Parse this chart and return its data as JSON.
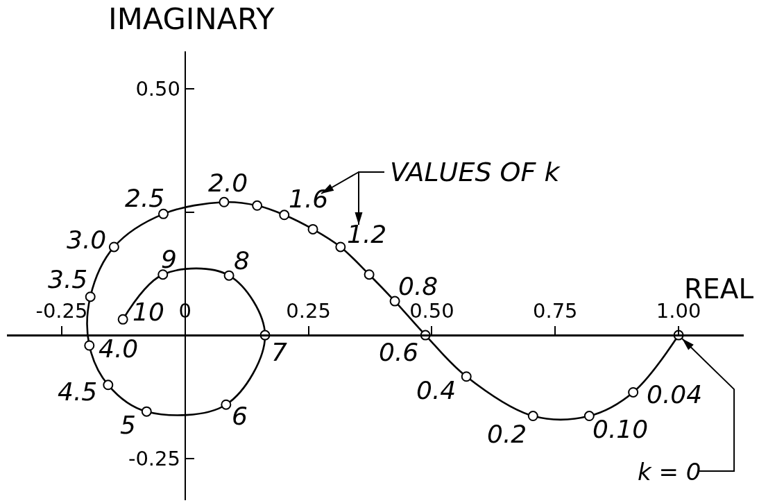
{
  "chart_data": {
    "type": "line",
    "xlabel": "REAL",
    "ylabel": "IMAGINARY",
    "x": [
      1.0,
      0.908,
      0.819,
      0.705,
      0.57,
      0.487,
      0.425,
      0.373,
      0.315,
      0.259,
      0.201,
      0.146,
      0.079,
      -0.044,
      -0.144,
      -0.192,
      -0.194,
      -0.156,
      -0.078,
      0.083,
      0.162,
      0.089,
      -0.045,
      -0.126
    ],
    "values": [
      0,
      -0.116,
      -0.164,
      -0.164,
      -0.084,
      0,
      0.069,
      0.123,
      0.179,
      0.215,
      0.244,
      0.263,
      0.27,
      0.246,
      0.179,
      0.078,
      -0.021,
      -0.101,
      -0.155,
      -0.141,
      0,
      0.121,
      0.123,
      0.032
    ],
    "color": "#000000",
    "marker": "circle",
    "line_style": "solid",
    "xlim": [
      -0.361,
      1.132
    ],
    "ylim": [
      -0.335,
      0.576
    ],
    "xticks": [
      -0.25,
      0,
      0.25,
      {
        "value": 0.5,
        "label": "0.50"
      },
      0.75,
      {
        "value": 1,
        "label": "1.00"
      }
    ],
    "yticks": [
      -0.25,
      {
        "value": 0.25,
        "label": null
      },
      {
        "value": 0.5,
        "label": "0.50"
      }
    ],
    "annotations": [
      {
        "text": "k = 0",
        "x": 1.0,
        "y": 0
      },
      {
        "text": "0.04",
        "x": 0.908,
        "y": -0.116
      },
      {
        "text": "0.10",
        "x": 0.819,
        "y": -0.164
      },
      {
        "text": "0.2",
        "x": 0.705,
        "y": -0.164
      },
      {
        "text": "0.4",
        "x": 0.57,
        "y": -0.084
      },
      {
        "text": "0.6",
        "x": 0.487,
        "y": 0
      },
      {
        "text": "0.8",
        "x": 0.425,
        "y": 0.069
      },
      {
        "text": "1.2",
        "x": 0.315,
        "y": 0.179
      },
      {
        "text": "1.6",
        "x": 0.201,
        "y": 0.244
      },
      {
        "text": "2.0",
        "x": 0.079,
        "y": 0.27
      },
      {
        "text": "2.5",
        "x": -0.044,
        "y": 0.246
      },
      {
        "text": "3.0",
        "x": -0.144,
        "y": 0.179
      },
      {
        "text": "3.5",
        "x": -0.192,
        "y": 0.078
      },
      {
        "text": "4.0",
        "x": -0.194,
        "y": -0.021
      },
      {
        "text": "4.5",
        "x": -0.156,
        "y": -0.101
      },
      {
        "text": "5",
        "x": -0.078,
        "y": -0.155
      },
      {
        "text": "6",
        "x": 0.083,
        "y": -0.141
      },
      {
        "text": "7",
        "x": 0.162,
        "y": 0
      },
      {
        "text": "8",
        "x": 0.089,
        "y": 0.121
      },
      {
        "text": "9",
        "x": -0.045,
        "y": 0.123
      },
      {
        "text": "10",
        "x": -0.126,
        "y": 0.032
      },
      "VALUES OF k"
    ]
  }
}
